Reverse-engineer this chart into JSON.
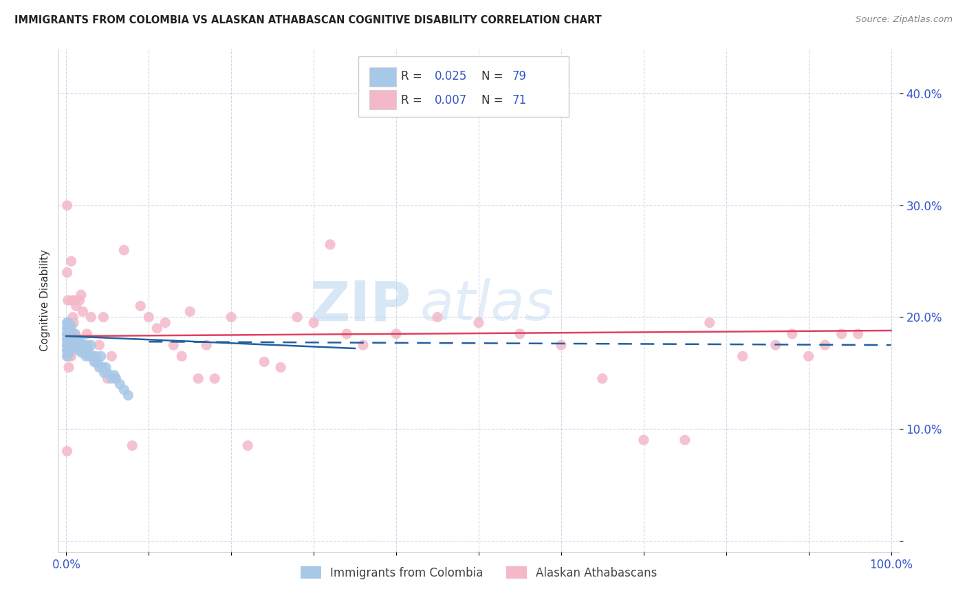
{
  "title": "IMMIGRANTS FROM COLOMBIA VS ALASKAN ATHABASCAN COGNITIVE DISABILITY CORRELATION CHART",
  "source": "Source: ZipAtlas.com",
  "ylabel": "Cognitive Disability",
  "color_blue": "#a8c8e8",
  "color_pink": "#f4b8c8",
  "line_blue": "#2060a0",
  "line_pink": "#e04060",
  "watermark_zip": "ZIP",
  "watermark_atlas": "atlas",
  "xlim": [
    0.0,
    1.0
  ],
  "ylim": [
    0.0,
    0.42
  ],
  "series1_x": [
    0.001,
    0.001,
    0.001,
    0.001,
    0.001,
    0.001,
    0.001,
    0.001,
    0.001,
    0.001,
    0.002,
    0.002,
    0.002,
    0.002,
    0.002,
    0.002,
    0.002,
    0.002,
    0.002,
    0.002,
    0.002,
    0.002,
    0.002,
    0.003,
    0.003,
    0.003,
    0.003,
    0.003,
    0.003,
    0.003,
    0.004,
    0.004,
    0.004,
    0.004,
    0.004,
    0.005,
    0.005,
    0.005,
    0.005,
    0.006,
    0.006,
    0.007,
    0.007,
    0.008,
    0.008,
    0.009,
    0.01,
    0.011,
    0.012,
    0.013,
    0.014,
    0.015,
    0.016,
    0.017,
    0.018,
    0.019,
    0.02,
    0.022,
    0.024,
    0.025,
    0.027,
    0.028,
    0.03,
    0.032,
    0.034,
    0.036,
    0.038,
    0.04,
    0.042,
    0.044,
    0.046,
    0.048,
    0.05,
    0.055,
    0.058,
    0.06,
    0.065,
    0.07,
    0.075
  ],
  "series1_y": [
    0.185,
    0.18,
    0.175,
    0.17,
    0.165,
    0.185,
    0.19,
    0.195,
    0.175,
    0.18,
    0.185,
    0.178,
    0.172,
    0.188,
    0.192,
    0.168,
    0.182,
    0.176,
    0.19,
    0.185,
    0.175,
    0.18,
    0.195,
    0.185,
    0.178,
    0.188,
    0.172,
    0.182,
    0.192,
    0.168,
    0.185,
    0.175,
    0.19,
    0.18,
    0.17,
    0.185,
    0.178,
    0.175,
    0.188,
    0.185,
    0.192,
    0.18,
    0.175,
    0.185,
    0.178,
    0.18,
    0.175,
    0.185,
    0.178,
    0.172,
    0.18,
    0.175,
    0.17,
    0.18,
    0.172,
    0.168,
    0.175,
    0.17,
    0.165,
    0.175,
    0.17,
    0.165,
    0.175,
    0.165,
    0.16,
    0.165,
    0.16,
    0.155,
    0.165,
    0.155,
    0.15,
    0.155,
    0.15,
    0.145,
    0.148,
    0.145,
    0.14,
    0.135,
    0.13
  ],
  "series2_x": [
    0.001,
    0.001,
    0.001,
    0.001,
    0.002,
    0.002,
    0.002,
    0.002,
    0.003,
    0.003,
    0.003,
    0.004,
    0.004,
    0.005,
    0.005,
    0.006,
    0.006,
    0.007,
    0.008,
    0.009,
    0.01,
    0.012,
    0.014,
    0.016,
    0.018,
    0.02,
    0.025,
    0.03,
    0.035,
    0.04,
    0.045,
    0.05,
    0.055,
    0.06,
    0.07,
    0.08,
    0.09,
    0.1,
    0.11,
    0.12,
    0.13,
    0.14,
    0.15,
    0.16,
    0.17,
    0.18,
    0.2,
    0.22,
    0.24,
    0.26,
    0.28,
    0.3,
    0.32,
    0.34,
    0.36,
    0.4,
    0.45,
    0.5,
    0.55,
    0.6,
    0.65,
    0.7,
    0.75,
    0.78,
    0.82,
    0.86,
    0.88,
    0.9,
    0.92,
    0.94,
    0.96
  ],
  "series2_y": [
    0.24,
    0.17,
    0.08,
    0.3,
    0.215,
    0.19,
    0.175,
    0.165,
    0.185,
    0.175,
    0.155,
    0.175,
    0.165,
    0.19,
    0.175,
    0.25,
    0.165,
    0.215,
    0.2,
    0.195,
    0.215,
    0.21,
    0.175,
    0.215,
    0.22,
    0.205,
    0.185,
    0.2,
    0.16,
    0.175,
    0.2,
    0.145,
    0.165,
    0.145,
    0.26,
    0.085,
    0.21,
    0.2,
    0.19,
    0.195,
    0.175,
    0.165,
    0.205,
    0.145,
    0.175,
    0.145,
    0.2,
    0.085,
    0.16,
    0.155,
    0.2,
    0.195,
    0.265,
    0.185,
    0.175,
    0.185,
    0.2,
    0.195,
    0.185,
    0.175,
    0.145,
    0.09,
    0.09,
    0.195,
    0.165,
    0.175,
    0.185,
    0.165,
    0.175,
    0.185,
    0.185
  ]
}
